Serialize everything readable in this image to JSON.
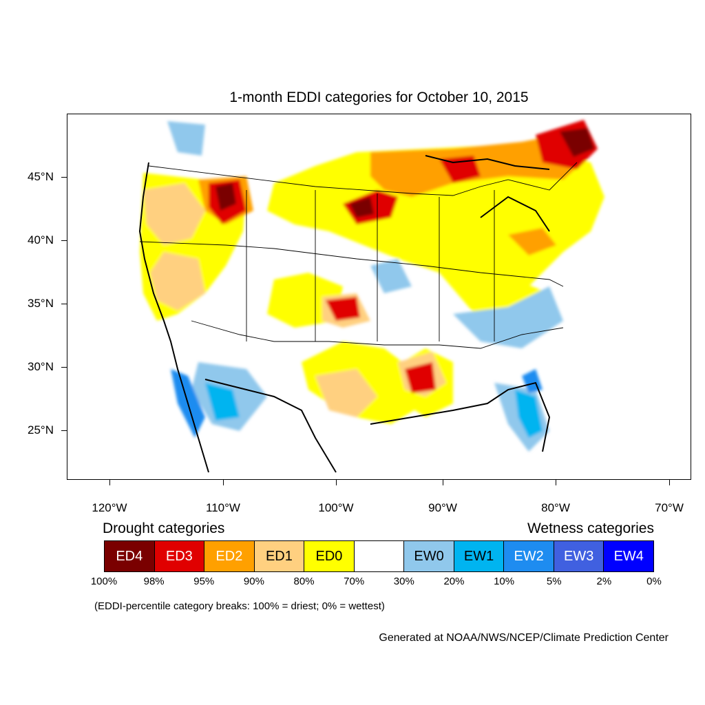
{
  "title": "1-month EDDI categories for October 10, 2015",
  "axes": {
    "y_labels": [
      "45°N",
      "40°N",
      "35°N",
      "30°N",
      "25°N"
    ],
    "x_labels": [
      "120°W",
      "110°W",
      "100°W",
      "90°W",
      "80°W",
      "70°W"
    ]
  },
  "legend": {
    "drought_heading": "Drought categories",
    "wetness_heading": "Wetness categories",
    "categories": [
      {
        "label": "ED4",
        "color": "#7a0000",
        "text_color": "#ffffff"
      },
      {
        "label": "ED3",
        "color": "#e00000",
        "text_color": "#ffffff"
      },
      {
        "label": "ED2",
        "color": "#ffa000",
        "text_color": "#ffffff"
      },
      {
        "label": "ED1",
        "color": "#ffd080",
        "text_color": "#000000"
      },
      {
        "label": "ED0",
        "color": "#ffff00",
        "text_color": "#000000"
      },
      {
        "label": "",
        "color": "#ffffff",
        "text_color": "#000000"
      },
      {
        "label": "EW0",
        "color": "#90c8ec",
        "text_color": "#000000"
      },
      {
        "label": "EW1",
        "color": "#00b4f0",
        "text_color": "#000000"
      },
      {
        "label": "EW2",
        "color": "#1e8cf0",
        "text_color": "#ffffff"
      },
      {
        "label": "EW3",
        "color": "#4060e0",
        "text_color": "#ffffff"
      },
      {
        "label": "EW4",
        "color": "#0000ff",
        "text_color": "#ffffff"
      }
    ],
    "breaks": [
      "100%",
      "98%",
      "95%",
      "90%",
      "80%",
      "70%",
      "30%",
      "20%",
      "10%",
      "5%",
      "2%",
      "0%"
    ]
  },
  "note": "(EDDI-percentile category breaks: 100% = driest; 0% = wettest)",
  "credit": "Generated at NOAA/NWS/NCEP/Climate Prediction Center"
}
